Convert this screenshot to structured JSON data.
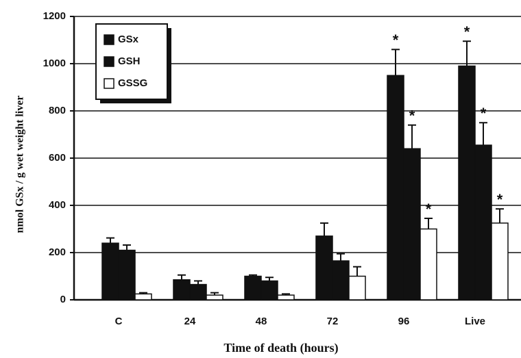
{
  "chart_data": {
    "type": "bar",
    "y_label": "nmol GSx / g wet weight  liver",
    "x_label": "Time of death (hours)",
    "categories": [
      "C",
      "24",
      "48",
      "72",
      "96",
      "Live"
    ],
    "series": [
      {
        "name": "GSx",
        "color": "#111111",
        "values": [
          240,
          85,
          100,
          270,
          950,
          990
        ],
        "errors": [
          22,
          20,
          5,
          55,
          110,
          105
        ],
        "value_annotations": [
          null,
          null,
          null,
          null,
          "*",
          "*"
        ]
      },
      {
        "name": "GSH",
        "color": "#111111",
        "values": [
          210,
          65,
          80,
          165,
          640,
          655
        ],
        "errors": [
          22,
          15,
          15,
          30,
          100,
          95
        ],
        "value_annotations": [
          null,
          null,
          null,
          null,
          "*",
          "*"
        ]
      },
      {
        "name": "GSSG",
        "color": "#ffffff",
        "values": [
          25,
          20,
          20,
          100,
          300,
          325
        ],
        "errors": [
          5,
          10,
          5,
          40,
          45,
          60
        ],
        "value_annotations": [
          null,
          null,
          null,
          null,
          "*",
          "*"
        ]
      }
    ],
    "ylim": [
      0,
      1200
    ],
    "yticks": [
      0,
      200,
      400,
      600,
      800,
      1000,
      1200
    ],
    "grid": true,
    "legend": "upper left"
  }
}
